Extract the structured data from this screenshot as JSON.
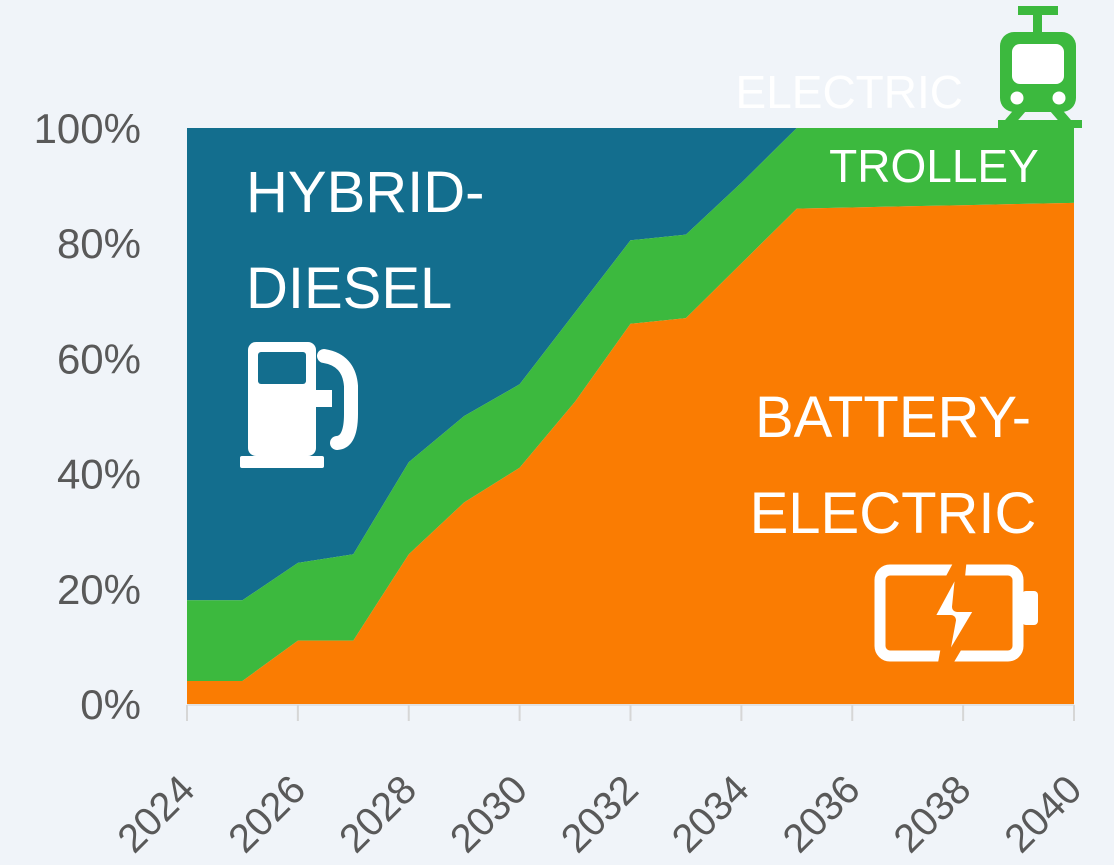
{
  "background_color": "#f0f4f9",
  "axis": {
    "text_color": "#595959",
    "tick_color": "#d6d6d6",
    "axisline_color": "#dcdcdc",
    "y_tick_values": [
      0,
      20,
      40,
      60,
      80,
      100
    ],
    "y_tick_labels": [
      "0%",
      "20%",
      "40%",
      "60%",
      "80%",
      "100%"
    ],
    "x_tick_years": [
      2024,
      2026,
      2028,
      2030,
      2032,
      2034,
      2036,
      2038,
      2040
    ],
    "x_tick_labels": [
      "2024",
      "2026",
      "2028",
      "2030",
      "2032",
      "2034",
      "2036",
      "2038",
      "2040"
    ]
  },
  "labels": {
    "hybrid_line1": "HYBRID-",
    "hybrid_line2": "DIESEL",
    "battery_line1": "BATTERY-",
    "battery_line2": "ELECTRIC",
    "trolley_inside": "TROLLEY",
    "electric_outside": "ELECTRIC"
  },
  "icons": {
    "fuel_pump": "fuel-pump-icon",
    "battery_charging": "battery-charging-icon",
    "trolley_tram": "trolley-tram-icon"
  },
  "chart_data": {
    "type": "area",
    "stacked": true,
    "title": "",
    "xlabel": "",
    "ylabel": "",
    "x": [
      2024,
      2025,
      2026,
      2027,
      2028,
      2029,
      2030,
      2031,
      2032,
      2033,
      2034,
      2035,
      2036,
      2037,
      2038,
      2039,
      2040
    ],
    "xlim": [
      2024,
      2040
    ],
    "ylim": [
      0,
      100
    ],
    "y_unit": "percent of fleet",
    "grid": false,
    "legend_position": "labels drawn inside areas",
    "series": [
      {
        "name": "BATTERY-ELECTRIC",
        "color": "#fa7c02",
        "values": [
          4,
          4,
          11,
          11,
          26,
          35,
          41,
          52.5,
          66,
          67,
          76.5,
          86,
          86.2,
          86.4,
          86.6,
          86.8,
          87
        ]
      },
      {
        "name": "ELECTRIC TROLLEY",
        "color": "#3cb93e",
        "values": [
          14,
          14,
          13.5,
          15,
          16,
          15,
          14.5,
          15.5,
          14.5,
          14.5,
          14,
          14,
          13.8,
          13.6,
          13.4,
          13.2,
          13
        ]
      },
      {
        "name": "HYBRID-DIESEL",
        "color": "#136e8e",
        "values": [
          82,
          82,
          75.5,
          74,
          58,
          50,
          44.5,
          32,
          19.5,
          18.5,
          9.5,
          0,
          0,
          0,
          0,
          0,
          0
        ]
      }
    ]
  }
}
